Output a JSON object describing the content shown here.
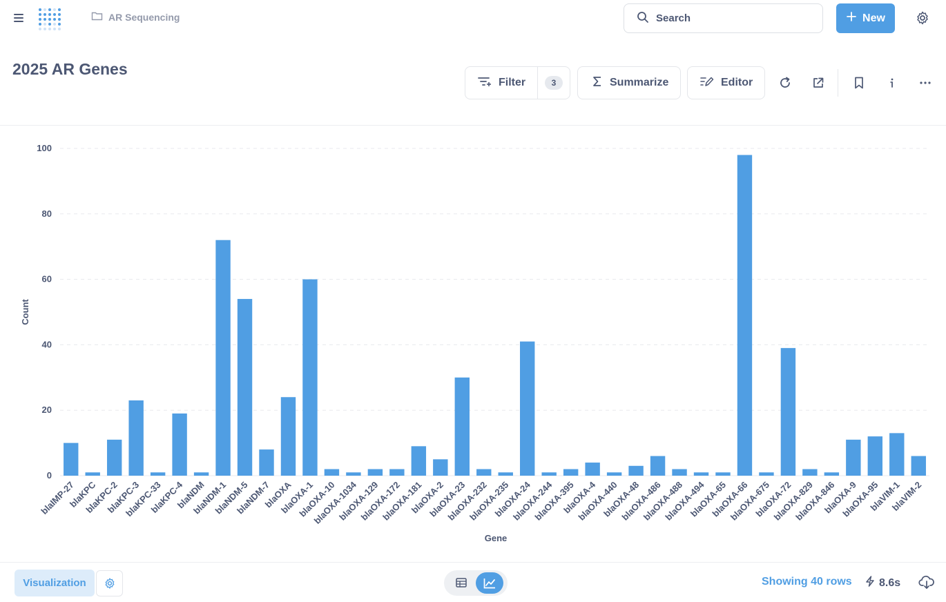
{
  "header": {
    "breadcrumb": "AR Sequencing",
    "search_label": "Search",
    "new_label": "New"
  },
  "question": {
    "title": "2025 AR Genes",
    "filter_label": "Filter",
    "filter_count": "3",
    "summarize_label": "Summarize",
    "editor_label": "Editor"
  },
  "footer": {
    "visualization_label": "Visualization",
    "rows_label": "Showing 40 rows",
    "timing": "8.6s"
  },
  "colors": {
    "accent": "#509ee3",
    "text": "#4c5773"
  },
  "chart_data": {
    "type": "bar",
    "xlabel": "Gene",
    "ylabel": "Count",
    "ylim": [
      0,
      100
    ],
    "yticks": [
      0,
      20,
      40,
      60,
      80,
      100
    ],
    "grid": true,
    "categories": [
      "blaIMP-27",
      "blaKPC",
      "blaKPC-2",
      "blaKPC-3",
      "blaKPC-33",
      "blaKPC-4",
      "blaNDM",
      "blaNDM-1",
      "blaNDM-5",
      "blaNDM-7",
      "blaOXA",
      "blaOXA-1",
      "blaOXA-10",
      "blaOXA-1034",
      "blaOXA-129",
      "blaOXA-172",
      "blaOXA-181",
      "blaOXA-2",
      "blaOXA-23",
      "blaOXA-232",
      "blaOXA-235",
      "blaOXA-24",
      "blaOXA-244",
      "blaOXA-395",
      "blaOXA-4",
      "blaOXA-440",
      "blaOXA-48",
      "blaOXA-486",
      "blaOXA-488",
      "blaOXA-494",
      "blaOXA-65",
      "blaOXA-66",
      "blaOXA-675",
      "blaOXA-72",
      "blaOXA-829",
      "blaOXA-846",
      "blaOXA-9",
      "blaOXA-95",
      "blaVIM-1",
      "blaVIM-2"
    ],
    "values": [
      10,
      1,
      11,
      23,
      1,
      19,
      1,
      72,
      54,
      8,
      24,
      60,
      2,
      1,
      2,
      2,
      9,
      5,
      30,
      2,
      1,
      41,
      1,
      2,
      4,
      1,
      3,
      6,
      2,
      1,
      1,
      98,
      1,
      39,
      2,
      1,
      11,
      12,
      13,
      6
    ]
  }
}
